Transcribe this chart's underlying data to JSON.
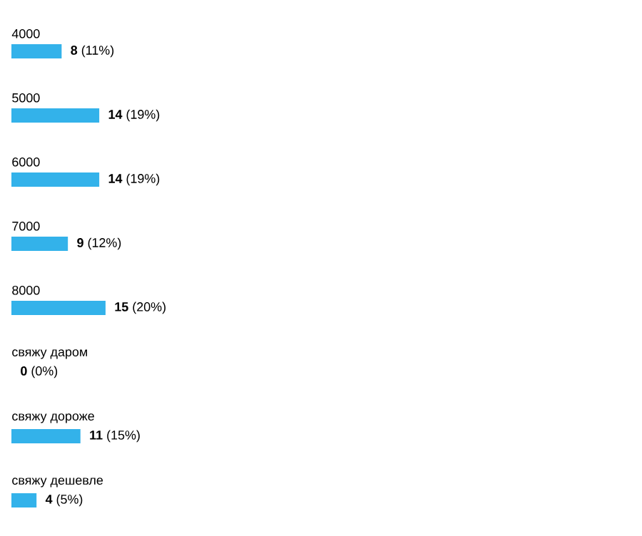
{
  "chart_data": {
    "type": "bar",
    "orientation": "horizontal",
    "color": "#33b2ea",
    "categories": [
      "4000",
      "5000",
      "6000",
      "7000",
      "8000",
      "свяжу даром",
      "свяжу дороже",
      "свяжу дешевле"
    ],
    "values": [
      8,
      14,
      14,
      9,
      15,
      0,
      11,
      4
    ],
    "value_labels": [
      "**8** (11%)",
      "**14** (19%)",
      "**14** (19%)",
      "**9** (12%)",
      "**15** (20%)",
      "**0** (0%)",
      "**11** (15%)",
      "**4** (5%)"
    ]
  }
}
